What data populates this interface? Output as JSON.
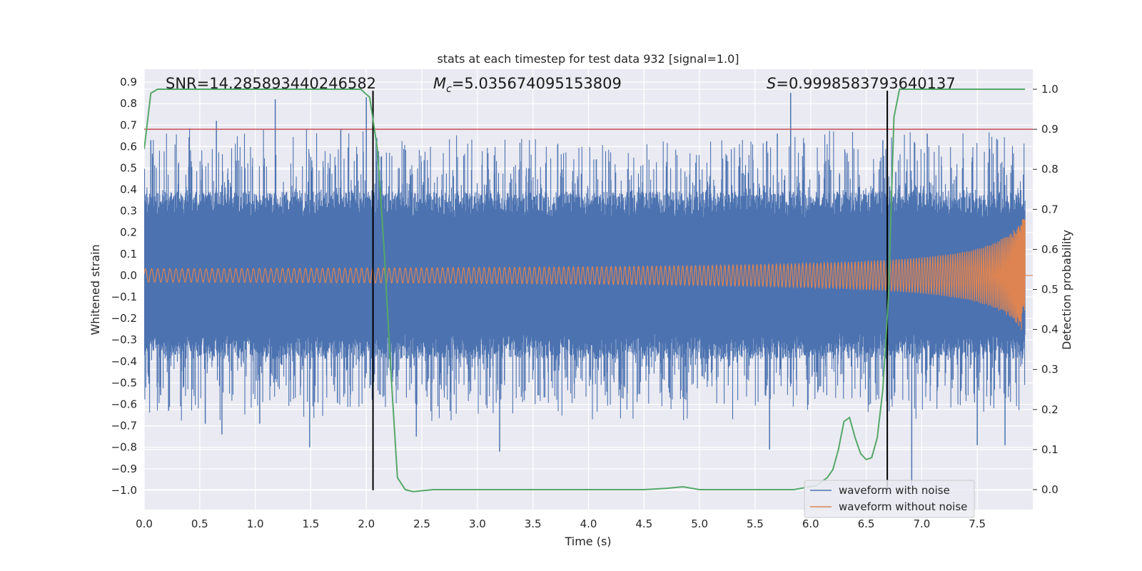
{
  "chart_data": {
    "type": "line",
    "title": "stats at each timestep for test data 932 [signal=1.0]",
    "xlabel": "Time (s)",
    "ylabel": "Whitened strain",
    "y2label": "Detection probability",
    "xlim": [
      0.0,
      8.0
    ],
    "ylim": [
      -1.09,
      0.96
    ],
    "y2lim": [
      -0.05,
      1.05
    ],
    "x_ticks": [
      0.0,
      0.5,
      1.0,
      1.5,
      2.0,
      2.5,
      3.0,
      3.5,
      4.0,
      4.5,
      5.0,
      5.5,
      6.0,
      6.5,
      7.0,
      7.5
    ],
    "x_tick_labels": [
      "0.0",
      "0.5",
      "1.0",
      "1.5",
      "2.0",
      "2.5",
      "3.0",
      "3.5",
      "4.0",
      "4.5",
      "5.0",
      "5.5",
      "6.0",
      "6.5",
      "7.0",
      "7.5"
    ],
    "y_ticks": [
      0.9,
      0.8,
      0.7,
      0.6,
      0.5,
      0.4,
      0.3,
      0.2,
      0.1,
      0.0,
      -0.1,
      -0.2,
      -0.3,
      -0.4,
      -0.5,
      -0.6,
      -0.7,
      -0.8,
      -0.9,
      -1.0
    ],
    "y_tick_labels": [
      "0.9",
      "0.8",
      "0.7",
      "0.6",
      "0.5",
      "0.4",
      "0.3",
      "0.2",
      "0.1",
      "0.0",
      "−0.1",
      "−0.2",
      "−0.3",
      "−0.4",
      "−0.5",
      "−0.6",
      "−0.7",
      "−0.8",
      "−0.9",
      "−1.0"
    ],
    "y2_ticks": [
      1.0,
      0.9,
      0.8,
      0.7,
      0.6,
      0.5,
      0.4,
      0.3,
      0.2,
      0.1,
      0.0
    ],
    "y2_tick_labels": [
      "1.0",
      "0.9",
      "0.8",
      "0.7",
      "0.6",
      "0.5",
      "0.4",
      "0.3",
      "0.2",
      "0.1",
      "0.0"
    ],
    "annotations": {
      "snr": "SNR=14.285893440246582",
      "mc": "=5.035674095153809",
      "mc_symbol": "M",
      "mc_sub": "c",
      "s": "=0.9998583793640137",
      "s_symbol": "S"
    },
    "threshold": {
      "value": 0.9,
      "axis": "y2",
      "color": "#c44e52"
    },
    "vlines": [
      {
        "x": 2.06,
        "ymin": -1.0,
        "ymax": 0.86,
        "color": "#000000"
      },
      {
        "x": 6.69,
        "ymin": -1.0,
        "ymax": 0.86,
        "color": "#000000"
      }
    ],
    "series": [
      {
        "name": "waveform with noise",
        "color": "#4c72b0",
        "kind": "noise",
        "x_range": [
          0.0,
          7.93
        ],
        "core_amplitude": 0.27,
        "peaks_up": [
          {
            "x": 0.06,
            "y": 0.63
          },
          {
            "x": 0.65,
            "y": 0.72
          },
          {
            "x": 1.18,
            "y": 0.82
          },
          {
            "x": 1.77,
            "y": 0.68
          },
          {
            "x": 2.0,
            "y": 0.83
          },
          {
            "x": 5.82,
            "y": 0.85
          },
          {
            "x": 5.7,
            "y": 0.66
          },
          {
            "x": 6.65,
            "y": 0.63
          },
          {
            "x": 7.05,
            "y": 0.66
          }
        ],
        "peaks_down": [
          {
            "x": 0.22,
            "y": -0.63
          },
          {
            "x": 0.55,
            "y": -0.69
          },
          {
            "x": 0.7,
            "y": -0.74
          },
          {
            "x": 1.04,
            "y": -0.69
          },
          {
            "x": 1.49,
            "y": -0.8
          },
          {
            "x": 2.45,
            "y": -0.75
          },
          {
            "x": 3.2,
            "y": -0.82
          },
          {
            "x": 5.63,
            "y": -0.81
          },
          {
            "x": 6.91,
            "y": -0.98
          },
          {
            "x": 7.5,
            "y": -0.79
          },
          {
            "x": 7.75,
            "y": -0.79
          }
        ]
      },
      {
        "name": "waveform without noise",
        "color": "#dd8452",
        "kind": "chirp",
        "x_range": [
          0.0,
          7.93
        ],
        "amplitude_start": 0.02,
        "amplitude_end": 0.28
      },
      {
        "name": "detection probability",
        "color": "#55a868",
        "axis": "y2",
        "x": [
          0.0,
          0.06,
          0.12,
          0.2,
          0.5,
          1.0,
          1.5,
          1.95,
          2.03,
          2.1,
          2.16,
          2.22,
          2.28,
          2.35,
          2.42,
          2.6,
          3.0,
          3.5,
          4.0,
          4.5,
          4.7,
          4.85,
          5.0,
          5.2,
          5.5,
          5.85,
          6.05,
          6.15,
          6.2,
          6.25,
          6.3,
          6.35,
          6.4,
          6.45,
          6.5,
          6.55,
          6.6,
          6.65,
          6.7,
          6.75,
          6.8,
          6.9,
          7.1,
          7.5,
          7.93
        ],
        "y": [
          0.85,
          0.99,
          1.0,
          1.0,
          1.0,
          1.0,
          1.0,
          1.0,
          0.98,
          0.85,
          0.6,
          0.3,
          0.03,
          0.0,
          -0.005,
          0.0,
          0.0,
          0.0,
          0.0,
          0.0,
          0.003,
          0.007,
          0.0,
          0.0,
          0.0,
          0.0,
          0.01,
          0.03,
          0.05,
          0.1,
          0.17,
          0.18,
          0.13,
          0.09,
          0.075,
          0.08,
          0.13,
          0.25,
          0.48,
          0.93,
          1.0,
          1.0,
          1.0,
          1.0,
          1.0
        ]
      }
    ],
    "legend": {
      "placement": "lower-right",
      "entries": [
        {
          "label": "waveform with noise",
          "color": "#4c72b0"
        },
        {
          "label": "waveform without noise",
          "color": "#dd8452"
        }
      ]
    },
    "style": {
      "background": "#eaeaf2",
      "grid": "#ffffff"
    }
  }
}
